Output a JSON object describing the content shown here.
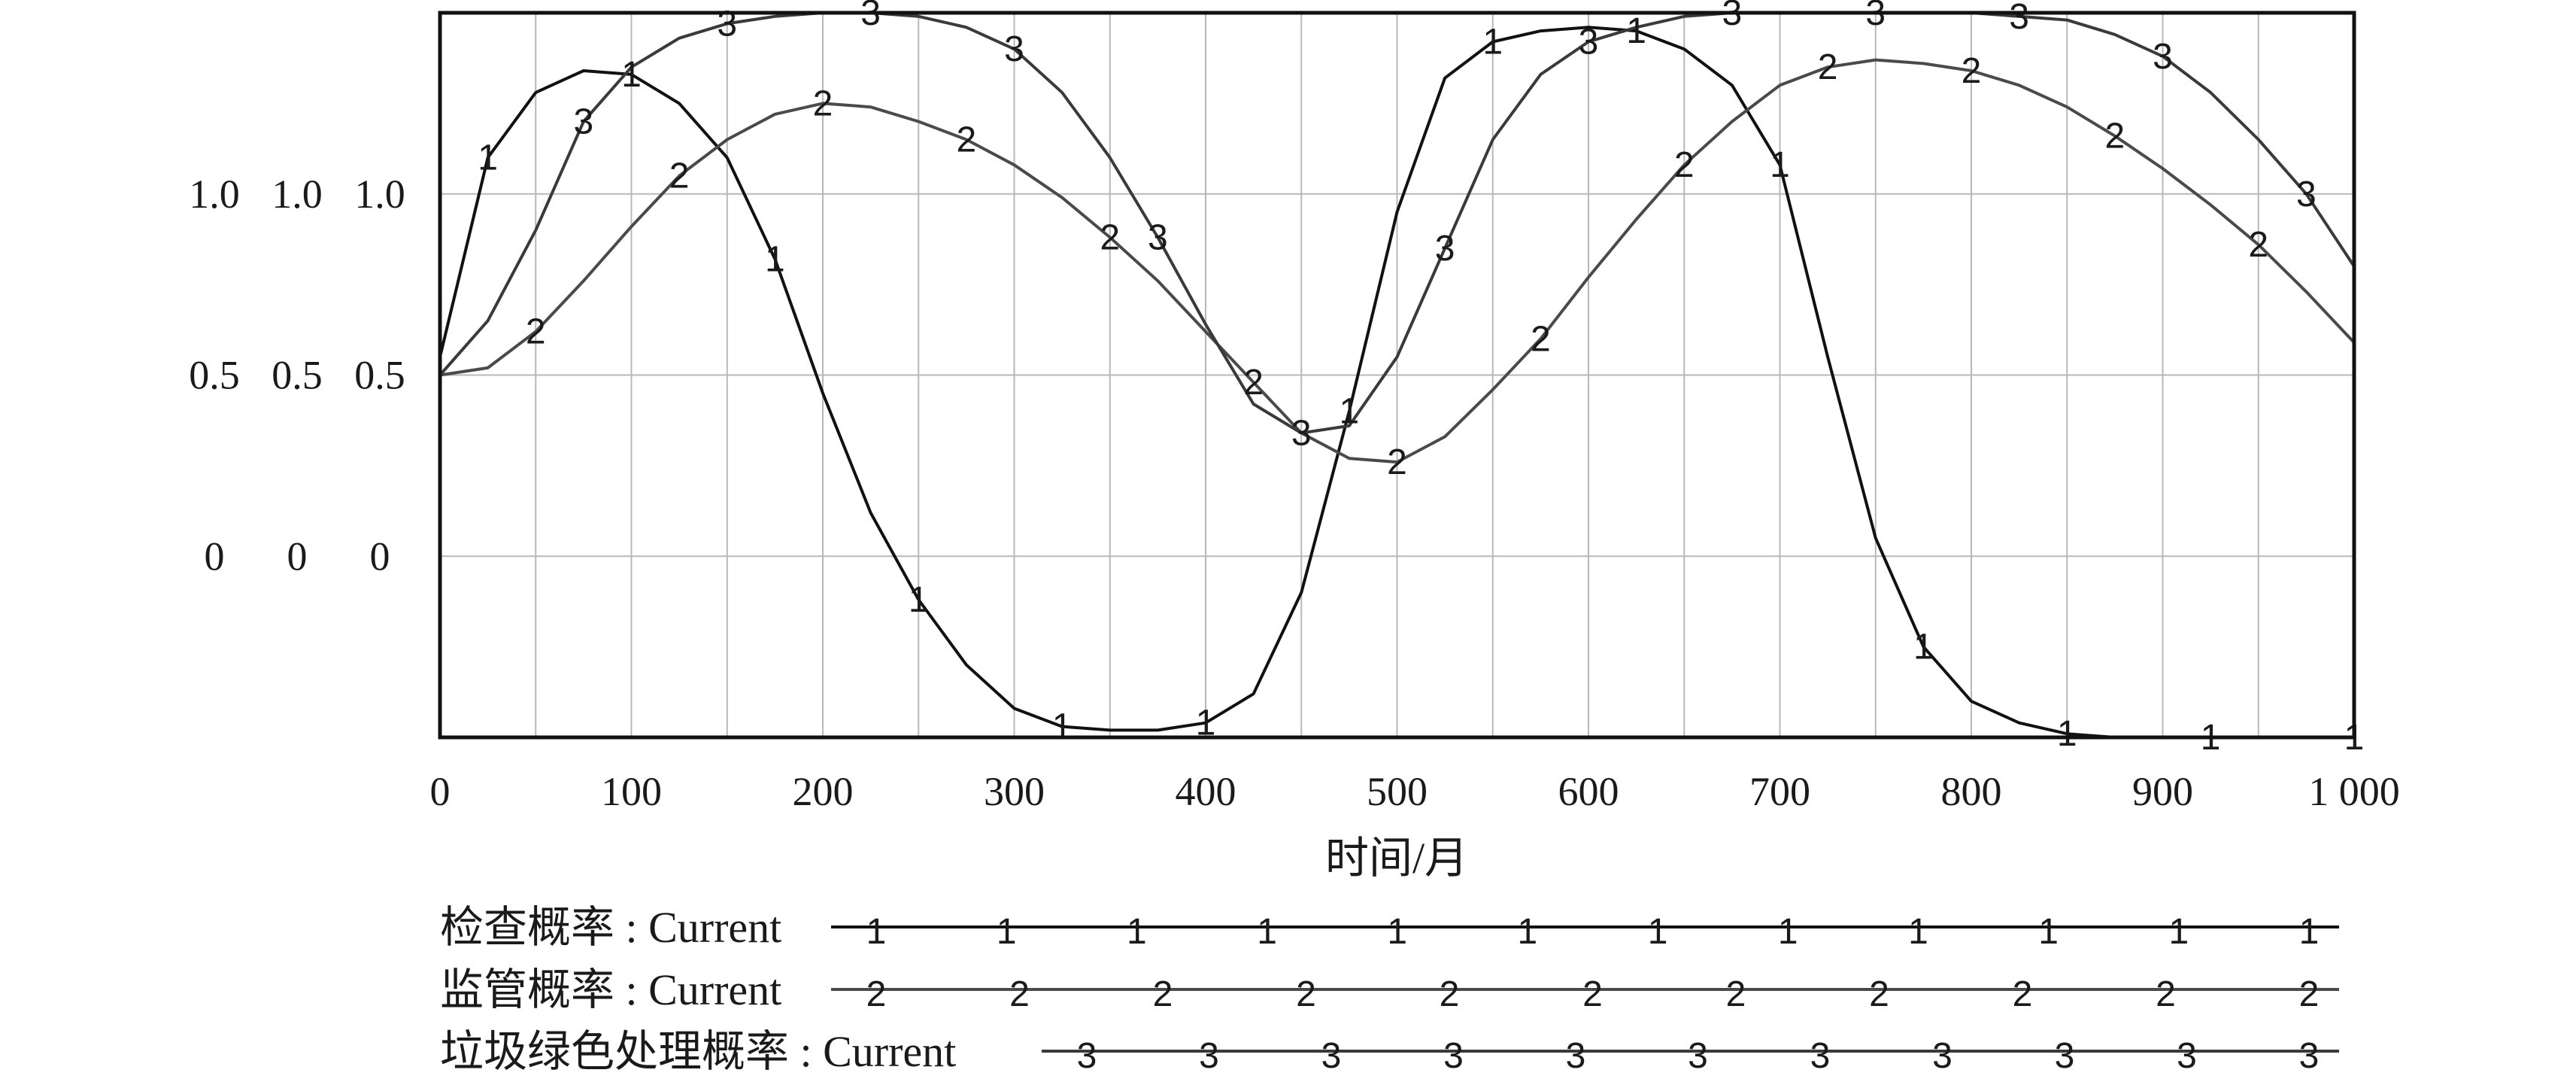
{
  "chart_data": {
    "type": "line",
    "xlabel": "时间/月",
    "xlim": [
      0,
      1000
    ],
    "x_ticks": [
      "0",
      "100",
      "200",
      "300",
      "400",
      "500",
      "600",
      "700",
      "800",
      "900",
      "1 000"
    ],
    "y_ticks": [
      "0",
      "0.5",
      "1.0"
    ],
    "y_axis_count": 3,
    "ylim": [
      -0.5,
      1.5
    ],
    "grid": true,
    "series": [
      {
        "name": "检查概率 : Current",
        "marker": "1",
        "x": [
          0,
          25,
          50,
          75,
          100,
          125,
          150,
          175,
          200,
          225,
          250,
          275,
          300,
          325,
          350,
          375,
          400,
          425,
          450,
          475,
          500,
          525,
          550,
          575,
          600,
          625,
          650,
          675,
          700,
          725,
          750,
          775,
          800,
          825,
          850,
          875,
          900,
          925,
          950,
          975,
          1000
        ],
        "y": [
          0.55,
          1.1,
          1.28,
          1.34,
          1.33,
          1.25,
          1.1,
          0.82,
          0.45,
          0.12,
          -0.12,
          -0.3,
          -0.42,
          -0.47,
          -0.48,
          -0.48,
          -0.46,
          -0.38,
          -0.1,
          0.4,
          0.95,
          1.32,
          1.42,
          1.45,
          1.46,
          1.45,
          1.4,
          1.3,
          1.08,
          0.55,
          0.05,
          -0.25,
          -0.4,
          -0.46,
          -0.49,
          -0.5,
          -0.5,
          -0.5,
          -0.5,
          -0.5,
          -0.5
        ]
      },
      {
        "name": "监管概率 : Current",
        "marker": "2",
        "x": [
          0,
          25,
          50,
          75,
          100,
          125,
          150,
          175,
          200,
          225,
          250,
          275,
          300,
          325,
          350,
          375,
          400,
          425,
          450,
          475,
          500,
          525,
          550,
          575,
          600,
          625,
          650,
          675,
          700,
          725,
          750,
          775,
          800,
          825,
          850,
          875,
          900,
          925,
          950,
          975,
          1000
        ],
        "y": [
          0.5,
          0.52,
          0.62,
          0.76,
          0.91,
          1.05,
          1.15,
          1.22,
          1.25,
          1.24,
          1.2,
          1.15,
          1.08,
          0.99,
          0.88,
          0.76,
          0.62,
          0.48,
          0.34,
          0.27,
          0.26,
          0.33,
          0.46,
          0.6,
          0.77,
          0.93,
          1.08,
          1.2,
          1.3,
          1.35,
          1.37,
          1.36,
          1.34,
          1.3,
          1.24,
          1.16,
          1.07,
          0.97,
          0.86,
          0.73,
          0.59
        ]
      },
      {
        "name": "垃圾绿色处理概率 : Current",
        "marker": "3",
        "x": [
          0,
          25,
          50,
          75,
          100,
          125,
          150,
          175,
          200,
          225,
          250,
          275,
          300,
          325,
          350,
          375,
          400,
          425,
          450,
          475,
          500,
          525,
          550,
          575,
          600,
          625,
          650,
          675,
          700,
          725,
          750,
          775,
          800,
          825,
          850,
          875,
          900,
          925,
          950,
          975,
          1000
        ],
        "y": [
          0.5,
          0.65,
          0.9,
          1.2,
          1.35,
          1.43,
          1.47,
          1.49,
          1.5,
          1.5,
          1.49,
          1.46,
          1.4,
          1.28,
          1.1,
          0.88,
          0.64,
          0.42,
          0.34,
          0.36,
          0.55,
          0.85,
          1.15,
          1.33,
          1.42,
          1.46,
          1.49,
          1.5,
          1.5,
          1.5,
          1.5,
          1.5,
          1.5,
          1.49,
          1.48,
          1.44,
          1.38,
          1.28,
          1.15,
          1.0,
          0.8
        ]
      }
    ]
  }
}
